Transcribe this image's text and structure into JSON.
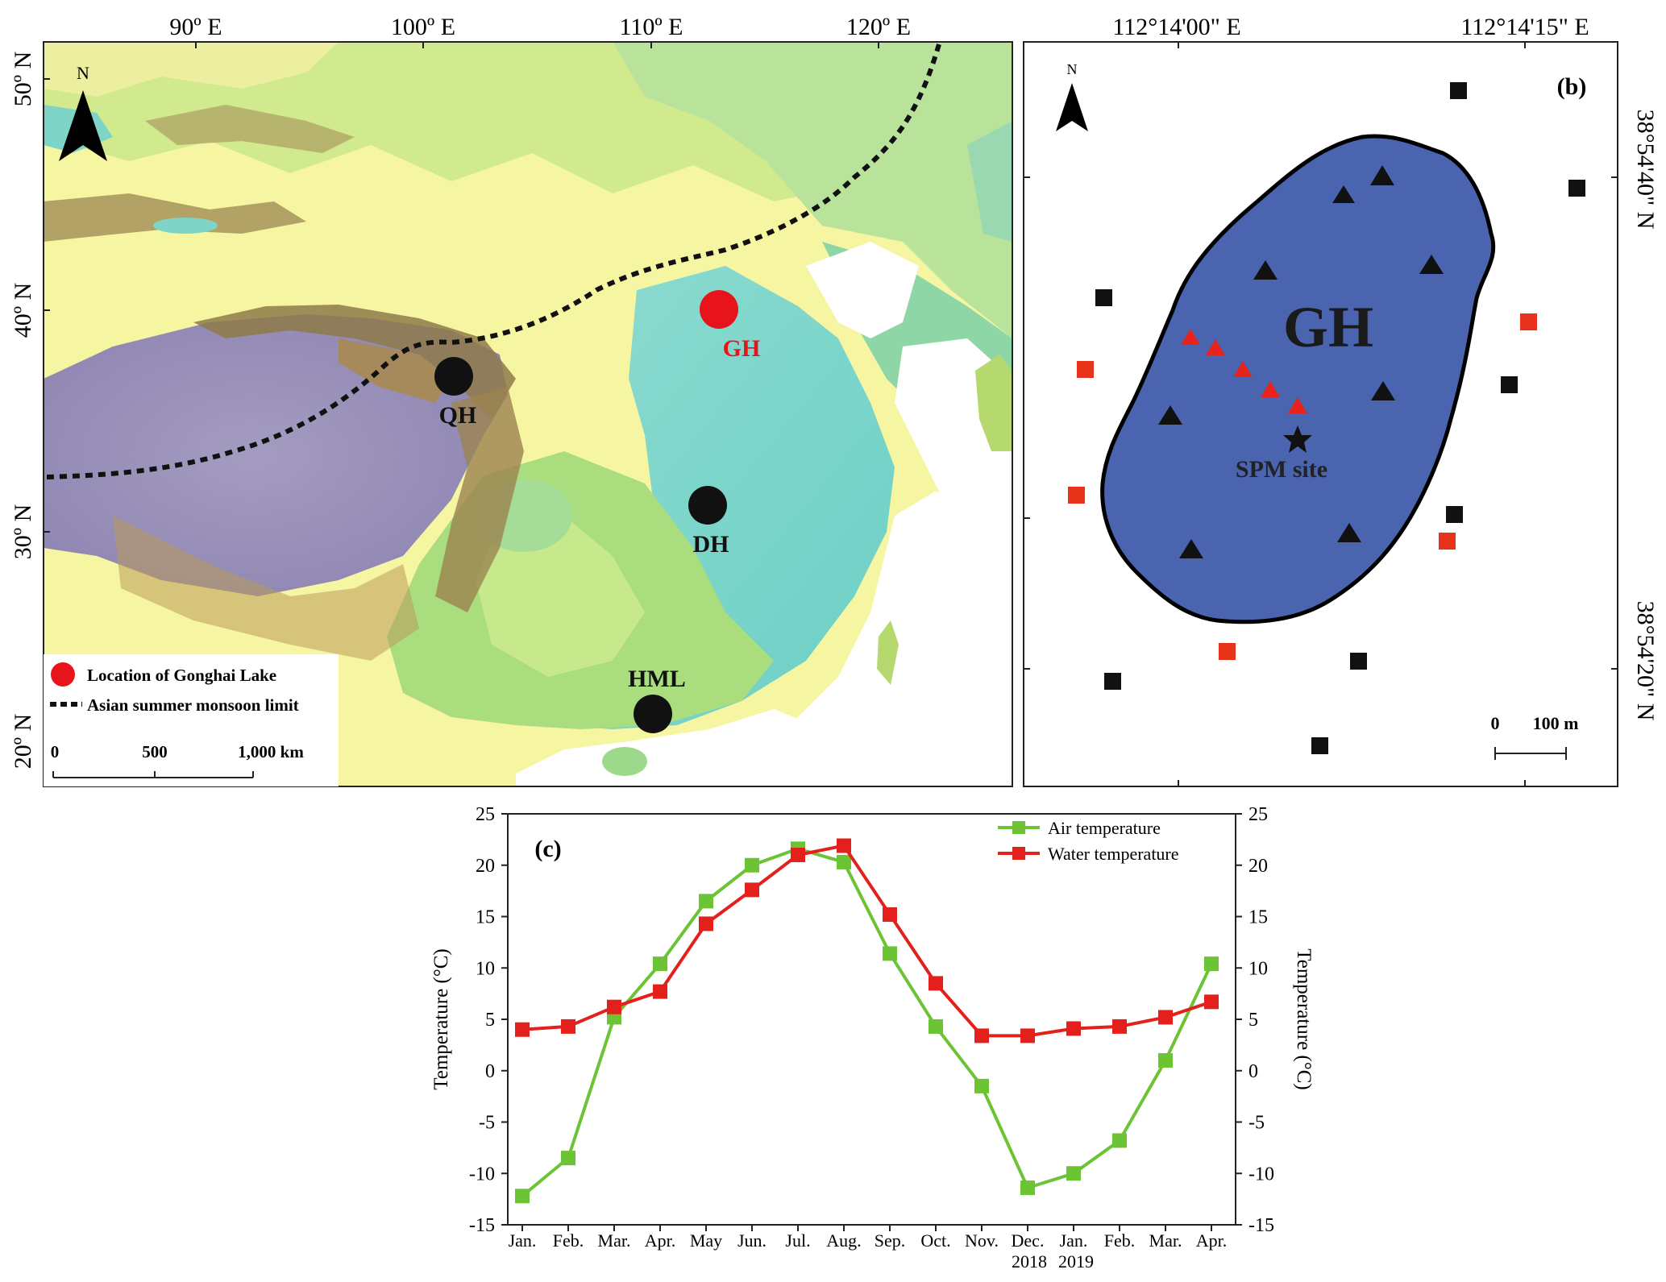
{
  "panel_a": {
    "lon_labels": [
      "90º E",
      "100º E",
      "110º E",
      "120º E"
    ],
    "lat_labels": [
      "50º N",
      "40º N",
      "30º N",
      "20º N"
    ],
    "north_label": "N",
    "sites": [
      {
        "label": "GH",
        "color": "#e8141b"
      },
      {
        "label": "QH",
        "color": "#111111"
      },
      {
        "label": "DH",
        "color": "#111111"
      },
      {
        "label": "HML",
        "color": "#111111"
      }
    ],
    "legend": {
      "location_label": "Location of Gonghai Lake",
      "monsoon_label": "Asian summer monsoon limit"
    },
    "scale_labels": [
      "0",
      "500",
      "1,000 km"
    ]
  },
  "panel_b": {
    "tag": "(b)",
    "north_label": "N",
    "lon_labels": [
      "112°14'00\" E",
      "112°14'15\" E"
    ],
    "lat_labels": [
      "38°54'40\" N",
      "38°54'20\" N"
    ],
    "lake_label": "GH",
    "spm_label": "SPM site",
    "scale_labels": [
      "0",
      "100 m"
    ]
  },
  "chart_data": {
    "type": "line",
    "tag": "(c)",
    "categories": [
      "Jan.",
      "Feb.",
      "Mar.",
      "Apr.",
      "May",
      "Jun.",
      "Jul.",
      "Aug.",
      "Sep.",
      "Oct.",
      "Nov.",
      "Dec.",
      "Jan.",
      "Feb.",
      "Mar.",
      "Apr."
    ],
    "year_labels": [
      "2018",
      "2019"
    ],
    "ylabel": "Temperature (°C)",
    "ylabel_right": "Temperature (°C)",
    "ylim": [
      -15,
      25
    ],
    "yticks": [
      -15,
      -10,
      -5,
      0,
      5,
      10,
      15,
      20,
      25
    ],
    "series": [
      {
        "name": "Air temperature",
        "color": "#6cc334",
        "values": [
          -12.2,
          -8.5,
          5.2,
          10.4,
          16.5,
          20.0,
          21.6,
          20.3,
          11.4,
          4.3,
          -1.5,
          -11.4,
          -10.0,
          -6.8,
          1.0,
          10.4
        ]
      },
      {
        "name": "Water temperature",
        "color": "#e3201b",
        "values": [
          4.0,
          4.3,
          6.2,
          7.7,
          14.3,
          17.6,
          21.0,
          21.9,
          15.2,
          8.5,
          3.4,
          3.4,
          4.1,
          4.3,
          5.2,
          6.7
        ]
      }
    ],
    "legend_position": "top-right"
  }
}
